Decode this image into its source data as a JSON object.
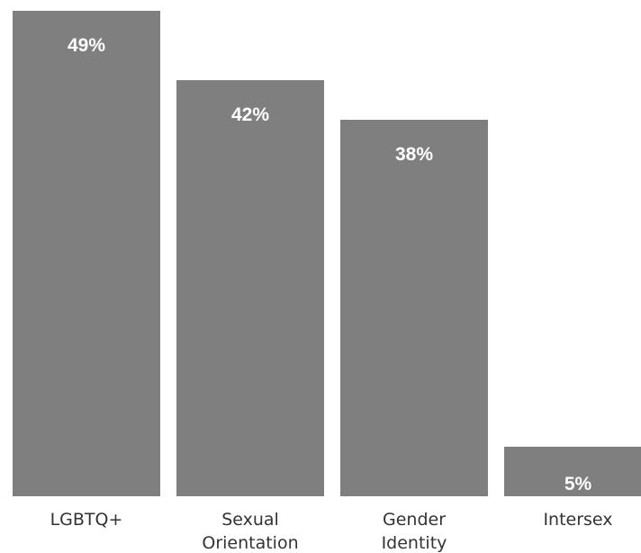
{
  "chart_data": {
    "type": "bar",
    "categories": [
      [
        "LGBTQ+"
      ],
      [
        "Sexual",
        "Orientation"
      ],
      [
        "Gender",
        "Identity"
      ],
      [
        "Intersex"
      ]
    ],
    "values": [
      49,
      42,
      38,
      5
    ],
    "data_labels": [
      "49%",
      "42%",
      "38%",
      "5%"
    ],
    "ylim": [
      0,
      49
    ],
    "grid": false,
    "legend": "none",
    "bar_color": "#7f7f7f",
    "label_color": "#ffffff"
  }
}
